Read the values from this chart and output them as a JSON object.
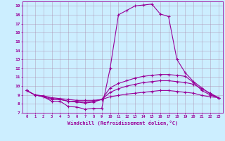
{
  "xlabel": "Windchill (Refroidissement éolien,°C)",
  "background_color": "#cceeff",
  "line_color": "#990099",
  "grid_color": "#aa88aa",
  "xlim": [
    -0.5,
    23.5
  ],
  "ylim": [
    7,
    19.5
  ],
  "xtick_vals": [
    0,
    1,
    2,
    3,
    4,
    5,
    6,
    7,
    8,
    9,
    10,
    11,
    12,
    13,
    14,
    15,
    16,
    17,
    18,
    19,
    20,
    21,
    22,
    23
  ],
  "ytick_vals": [
    7,
    8,
    9,
    10,
    11,
    12,
    13,
    14,
    15,
    16,
    17,
    18,
    19
  ],
  "curve1_x": [
    0,
    1,
    2,
    3,
    4,
    5,
    6,
    7,
    8,
    9,
    10,
    11,
    12,
    13,
    14,
    15,
    16,
    17,
    18,
    19,
    20,
    21,
    22,
    23
  ],
  "curve1_y": [
    9.5,
    9.0,
    8.8,
    8.3,
    8.3,
    7.7,
    7.65,
    7.4,
    7.5,
    7.5,
    12.0,
    18.0,
    18.5,
    19.0,
    19.1,
    19.2,
    18.1,
    17.8,
    13.0,
    11.5,
    10.5,
    9.8,
    9.1,
    8.7
  ],
  "curve2_x": [
    0,
    1,
    2,
    3,
    4,
    5,
    6,
    7,
    8,
    9,
    10,
    11,
    12,
    13,
    14,
    15,
    16,
    17,
    18,
    19,
    20,
    21,
    22,
    23
  ],
  "curve2_y": [
    9.5,
    9.0,
    8.8,
    8.5,
    8.5,
    8.3,
    8.2,
    8.1,
    8.2,
    8.5,
    9.8,
    10.3,
    10.6,
    10.9,
    11.1,
    11.2,
    11.3,
    11.3,
    11.2,
    11.1,
    10.4,
    9.5,
    9.0,
    8.7
  ],
  "curve3_x": [
    0,
    1,
    2,
    3,
    4,
    5,
    6,
    7,
    8,
    9,
    10,
    11,
    12,
    13,
    14,
    15,
    16,
    17,
    18,
    19,
    20,
    21,
    22,
    23
  ],
  "curve3_y": [
    9.5,
    9.0,
    8.9,
    8.6,
    8.5,
    8.3,
    8.3,
    8.2,
    8.3,
    8.5,
    9.3,
    9.7,
    10.0,
    10.2,
    10.4,
    10.5,
    10.6,
    10.6,
    10.5,
    10.4,
    10.2,
    9.7,
    9.2,
    8.7
  ],
  "curve4_x": [
    0,
    1,
    2,
    3,
    4,
    5,
    6,
    7,
    8,
    9,
    10,
    11,
    12,
    13,
    14,
    15,
    16,
    17,
    18,
    19,
    20,
    21,
    22,
    23
  ],
  "curve4_y": [
    9.5,
    9.0,
    8.9,
    8.7,
    8.6,
    8.5,
    8.4,
    8.4,
    8.4,
    8.5,
    8.8,
    8.95,
    9.1,
    9.2,
    9.3,
    9.4,
    9.5,
    9.5,
    9.4,
    9.3,
    9.2,
    8.95,
    8.8,
    8.7
  ]
}
